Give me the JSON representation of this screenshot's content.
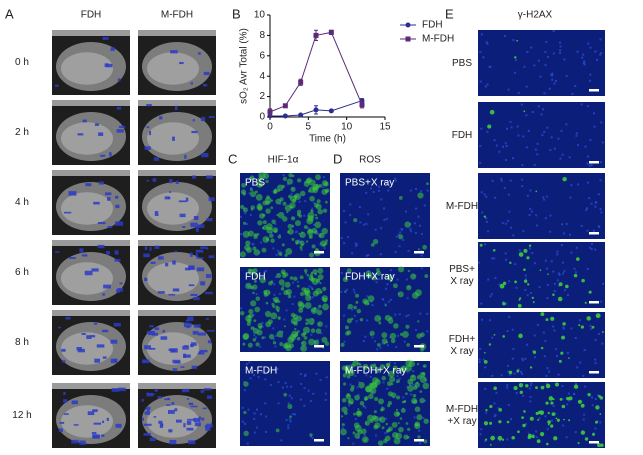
{
  "panel_a": {
    "label": "A",
    "columns": [
      "FDH",
      "M-FDH"
    ],
    "rows": [
      "0 h",
      "2 h",
      "4 h",
      "6 h",
      "8 h",
      "12 h"
    ]
  },
  "chart_data": {
    "type": "line",
    "panel_label": "B",
    "x": [
      0,
      2,
      4,
      6,
      8,
      12
    ],
    "xlim": [
      0,
      15
    ],
    "xticks": [
      0,
      5,
      10,
      15
    ],
    "ylim": [
      0,
      10
    ],
    "yticks": [
      0,
      2,
      4,
      6,
      8,
      10
    ],
    "xlabel": "Time (h)",
    "ylabel": "sO₂ Avr Total (%)",
    "legend": "upper right",
    "series": [
      {
        "name": "FDH",
        "color": "#2b2f8f",
        "marker": "circle",
        "values": [
          0.1,
          0.1,
          0.2,
          0.7,
          0.6,
          1.6
        ],
        "errors": [
          0.1,
          0.1,
          0.1,
          0.4,
          0.1,
          0.2
        ]
      },
      {
        "name": "M-FDH",
        "color": "#5b2a78",
        "marker": "square",
        "values": [
          0.5,
          1.1,
          3.4,
          8.0,
          8.3,
          1.2
        ],
        "errors": [
          0.3,
          0.1,
          0.3,
          0.5,
          0.2,
          0.3
        ]
      }
    ]
  },
  "panel_c": {
    "label": "C",
    "title": "HIF-1α",
    "images": [
      "PBS",
      "FDH",
      "M-FDH"
    ]
  },
  "panel_d": {
    "label": "D",
    "title": "ROS",
    "images": [
      "PBS+X ray",
      "FDH+X ray",
      "M-FDH+X ray"
    ]
  },
  "panel_e": {
    "label": "E",
    "title": "γ-H2AX",
    "images": [
      [
        "PBS"
      ],
      [
        "FDH"
      ],
      [
        "M-FDH"
      ],
      [
        "PBS+",
        "X ray"
      ],
      [
        "FDH+",
        "X ray"
      ],
      [
        "M-FDH",
        "+X ray"
      ]
    ]
  }
}
